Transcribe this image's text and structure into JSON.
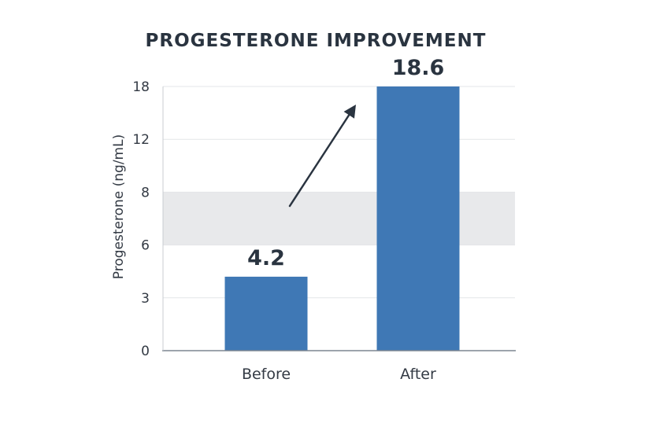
{
  "chart_data": {
    "type": "bar",
    "title": "PROGESTERONE IMPROVEMENT",
    "ylabel": "Progesterone (ng/mL)",
    "categories": [
      "Before",
      "After"
    ],
    "values": [
      4.2,
      18.6
    ],
    "data_labels": [
      "4.2",
      "18.6"
    ],
    "y_ticks": [
      "0",
      "3",
      "6",
      "8",
      "12",
      "18"
    ],
    "reference_band_ticks": [
      "6",
      "8"
    ],
    "grid": true,
    "annotation": "arrow from Before label to After bar",
    "colors": {
      "bar": "#3f78b5",
      "band": "#e8e9eb",
      "grid": "#e3e5e8",
      "text": "#2a3440"
    }
  }
}
